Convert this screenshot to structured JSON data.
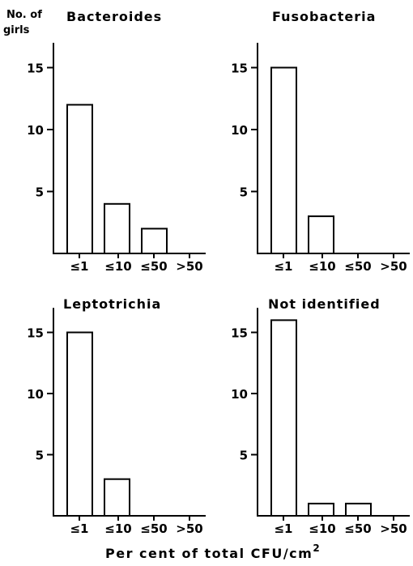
{
  "ylabel_line1": "No. of",
  "ylabel_line2": "girls",
  "xlabel": "Per cent of total CFU/cm",
  "xlabel_sup": "2",
  "chart_data": [
    {
      "type": "bar",
      "title": "Bacteroides",
      "categories": [
        "≤1",
        "≤10",
        "≤50",
        ">50"
      ],
      "values": [
        12,
        4,
        2,
        0
      ],
      "ylim": [
        0,
        17
      ],
      "yticks": [
        5,
        10,
        15
      ]
    },
    {
      "type": "bar",
      "title": "Fusobacteria",
      "categories": [
        "≤1",
        "≤10",
        "≤50",
        ">50"
      ],
      "values": [
        15,
        3,
        0,
        0
      ],
      "ylim": [
        0,
        17
      ],
      "yticks": [
        5,
        10,
        15
      ]
    },
    {
      "type": "bar",
      "title": "Leptotrichia",
      "categories": [
        "≤1",
        "≤10",
        "≤50",
        ">50"
      ],
      "values": [
        15,
        3,
        0,
        0
      ],
      "ylim": [
        0,
        17
      ],
      "yticks": [
        5,
        10,
        15
      ]
    },
    {
      "type": "bar",
      "title": "Not identified",
      "categories": [
        "≤1",
        "≤10",
        "≤50",
        ">50"
      ],
      "values": [
        16,
        1,
        1,
        0
      ],
      "ylim": [
        0,
        17
      ],
      "yticks": [
        5,
        10,
        15
      ]
    }
  ]
}
